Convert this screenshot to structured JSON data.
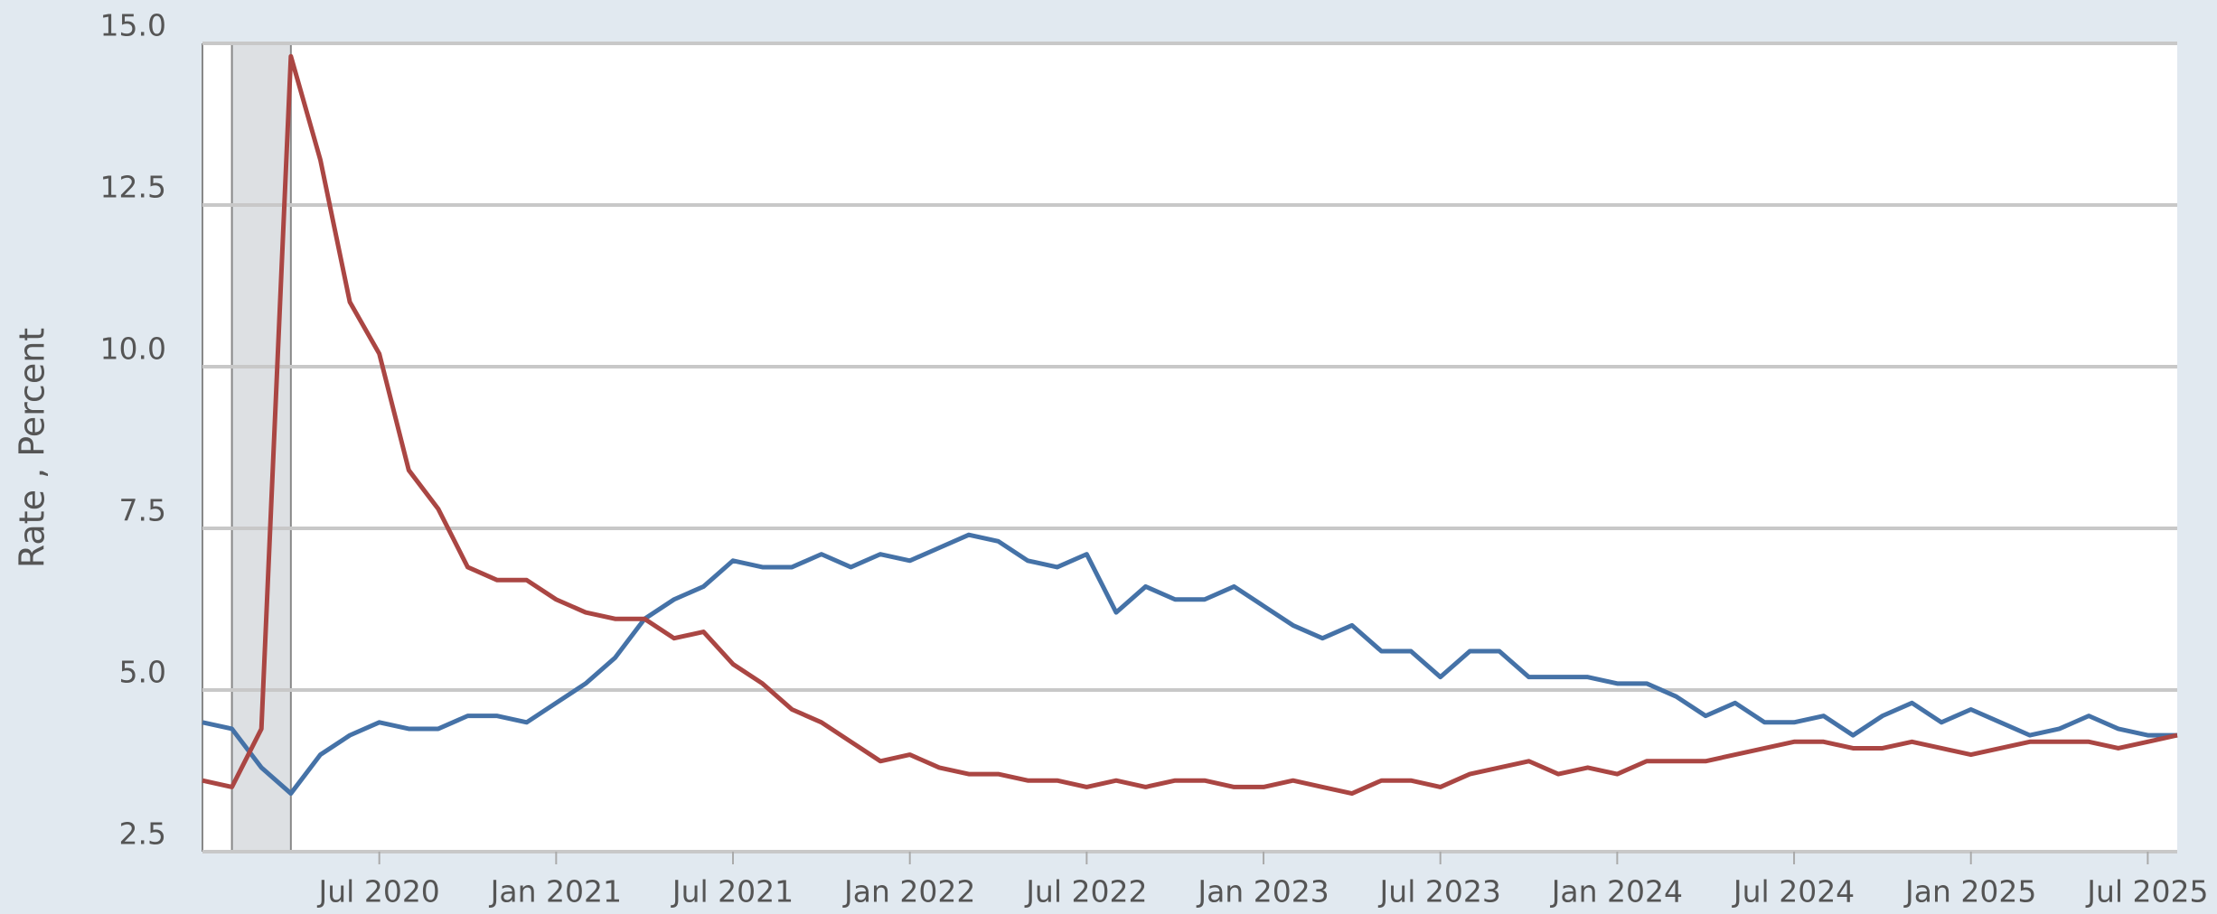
{
  "chart_data": {
    "type": "line",
    "y_label": "Rate , Percent",
    "x": [
      "2020-01",
      "2020-02",
      "2020-03",
      "2020-04",
      "2020-05",
      "2020-06",
      "2020-07",
      "2020-08",
      "2020-09",
      "2020-10",
      "2020-11",
      "2020-12",
      "2021-01",
      "2021-02",
      "2021-03",
      "2021-04",
      "2021-05",
      "2021-06",
      "2021-07",
      "2021-08",
      "2021-09",
      "2021-10",
      "2021-11",
      "2021-12",
      "2022-01",
      "2022-02",
      "2022-03",
      "2022-04",
      "2022-05",
      "2022-06",
      "2022-07",
      "2022-08",
      "2022-09",
      "2022-10",
      "2022-11",
      "2022-12",
      "2023-01",
      "2023-02",
      "2023-03",
      "2023-04",
      "2023-05",
      "2023-06",
      "2023-07",
      "2023-08",
      "2023-09",
      "2023-10",
      "2023-11",
      "2023-12",
      "2024-01",
      "2024-02",
      "2024-03",
      "2024-04",
      "2024-05",
      "2024-06",
      "2024-07",
      "2024-08",
      "2024-09",
      "2024-10",
      "2024-11",
      "2024-12",
      "2025-01",
      "2025-02",
      "2025-03",
      "2025-04",
      "2025-05",
      "2025-06",
      "2025-07",
      "2025-08"
    ],
    "series": [
      {
        "color": "#4572a7",
        "values": [
          4.5,
          4.4,
          3.8,
          3.4,
          4.0,
          4.3,
          4.5,
          4.4,
          4.4,
          4.6,
          4.6,
          4.5,
          4.8,
          5.1,
          5.5,
          6.1,
          6.4,
          6.6,
          7.0,
          6.9,
          6.9,
          7.1,
          6.9,
          7.1,
          7.0,
          7.2,
          7.4,
          7.3,
          7.0,
          6.9,
          7.1,
          6.2,
          6.6,
          6.4,
          6.4,
          6.6,
          6.3,
          6.0,
          5.8,
          6.0,
          5.6,
          5.6,
          5.2,
          5.6,
          5.6,
          5.2,
          5.2,
          5.2,
          5.1,
          5.1,
          4.9,
          4.6,
          4.8,
          4.5,
          4.5,
          4.6,
          4.3,
          4.6,
          4.8,
          4.5,
          4.7,
          4.5,
          4.3,
          4.4,
          4.6,
          4.4,
          4.3,
          4.3
        ]
      },
      {
        "color": "#aa4643",
        "values": [
          3.6,
          3.5,
          4.4,
          14.8,
          13.2,
          11.0,
          10.2,
          8.4,
          7.8,
          6.9,
          6.7,
          6.7,
          6.4,
          6.2,
          6.1,
          6.1,
          5.8,
          5.9,
          5.4,
          5.1,
          4.7,
          4.5,
          4.2,
          3.9,
          4.0,
          3.8,
          3.7,
          3.7,
          3.6,
          3.6,
          3.5,
          3.6,
          3.5,
          3.6,
          3.6,
          3.5,
          3.5,
          3.6,
          3.5,
          3.4,
          3.6,
          3.6,
          3.5,
          3.7,
          3.8,
          3.9,
          3.7,
          3.8,
          3.7,
          3.9,
          3.9,
          3.9,
          4.0,
          4.1,
          4.2,
          4.2,
          4.1,
          4.1,
          4.2,
          4.1,
          4.0,
          4.1,
          4.2,
          4.2,
          4.2,
          4.1,
          4.2,
          4.3
        ]
      }
    ],
    "shaded": [
      "2020-02",
      "2020-04"
    ],
    "ylim": [
      2.5,
      15
    ],
    "yticks": [
      {
        "value": 2.5,
        "label": "2.5"
      },
      {
        "value": 5,
        "label": "5.0"
      },
      7.5,
      {
        "value": 10,
        "label": "10.0"
      },
      12.5,
      {
        "value": 15,
        "label": "15.0"
      }
    ],
    "xticks": [
      {
        "value": "2020-07",
        "label": "Jul 2020"
      },
      {
        "value": "2021-01",
        "label": "Jan 2021"
      },
      {
        "value": "2021-07",
        "label": "Jul 2021"
      },
      {
        "value": "2022-01",
        "label": "Jan 2022"
      },
      {
        "value": "2022-07",
        "label": "Jul 2022"
      },
      {
        "value": "2023-01",
        "label": "Jan 2023"
      },
      {
        "value": "2023-07",
        "label": "Jul 2023"
      },
      {
        "value": "2024-01",
        "label": "Jan 2024"
      },
      {
        "value": "2024-07",
        "label": "Jul 2024"
      },
      {
        "value": "2025-01",
        "label": "Jan 2025"
      },
      {
        "value": "2025-07",
        "label": "Jul 2025"
      }
    ],
    "grid": true
  }
}
